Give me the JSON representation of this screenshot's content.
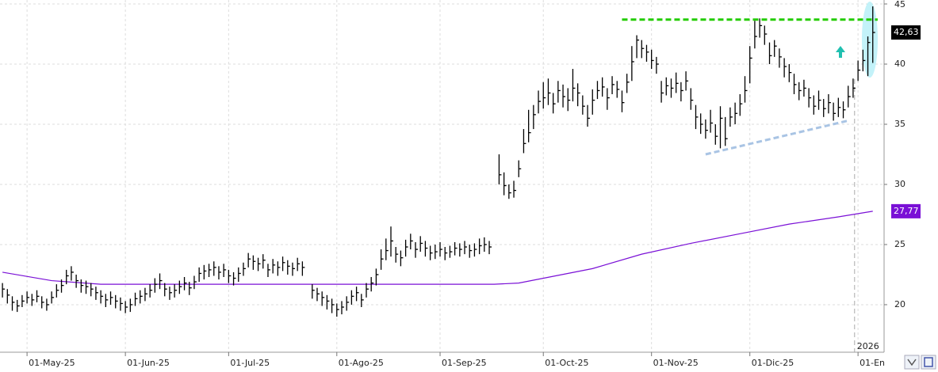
{
  "chart_data": {
    "type": "ohlc",
    "color": "#000000",
    "xlim": [
      -0.5,
      179.3
    ],
    "ylim": [
      16.05,
      45.33
    ],
    "yticks": [
      20,
      25,
      30,
      35,
      40,
      45
    ],
    "xticks": [
      {
        "value": 5,
        "label": "01-May-25"
      },
      {
        "value": 25,
        "label": "01-Jun-25"
      },
      {
        "value": 46,
        "label": "01-Jul-25"
      },
      {
        "value": 68,
        "label": "01-Ago-25"
      },
      {
        "value": 89,
        "label": "01-Sep-25"
      },
      {
        "value": 110,
        "label": "01-Oct-25"
      },
      {
        "value": 132,
        "label": "01-Nov-25"
      },
      {
        "value": 152,
        "label": "01-Dic-25"
      },
      {
        "value": 174,
        "label": "01-En"
      }
    ],
    "grid": true,
    "high": [
      21.8,
      21.3,
      20.7,
      20.4,
      20.8,
      21.1,
      20.9,
      21.2,
      20.7,
      20.5,
      21.1,
      21.7,
      22.1,
      22.9,
      23.2,
      22.5,
      22.1,
      22.0,
      21.8,
      21.5,
      21.2,
      20.9,
      21.1,
      20.8,
      20.6,
      20.3,
      20.5,
      21.0,
      21.2,
      21.4,
      21.7,
      22.2,
      22.6,
      21.8,
      21.5,
      21.7,
      22.0,
      22.3,
      21.9,
      22.4,
      23.1,
      23.3,
      23.4,
      23.6,
      23.2,
      23.4,
      22.9,
      22.7,
      23.1,
      23.5,
      24.3,
      24.1,
      23.9,
      24.2,
      23.4,
      23.8,
      23.6,
      24.0,
      23.7,
      23.5,
      23.9,
      23.6,
      null,
      21.7,
      21.4,
      21.1,
      20.8,
      20.5,
      20.1,
      20.3,
      20.7,
      21.2,
      21.5,
      20.9,
      21.8,
      22.3,
      23.0,
      24.6,
      25.5,
      26.5,
      24.8,
      24.5,
      25.4,
      25.9,
      25.2,
      25.7,
      25.3,
      24.9,
      25.0,
      25.2,
      24.8,
      24.9,
      25.2,
      25.1,
      25.3,
      25.0,
      25.1,
      25.5,
      25.6,
      25.3,
      null,
      32.5,
      31.0,
      30.0,
      30.3,
      32.0,
      34.6,
      36.2,
      36.6,
      37.8,
      38.5,
      38.8,
      37.6,
      38.6,
      38.3,
      38.0,
      39.6,
      38.4,
      37.4,
      36.6,
      37.9,
      38.6,
      38.9,
      38.0,
      39.0,
      38.6,
      37.8,
      39.2,
      41.5,
      42.4,
      42.0,
      41.6,
      41.2,
      40.6,
      38.6,
      38.9,
      38.8,
      39.3,
      38.5,
      39.4,
      38.0,
      36.6,
      35.9,
      35.4,
      36.2,
      35.0,
      36.5,
      35.6,
      36.4,
      36.8,
      37.5,
      39.0,
      41.5,
      43.6,
      43.8,
      43.2,
      41.8,
      42.0,
      41.3,
      40.5,
      40.0,
      39.2,
      38.5,
      38.7,
      38.0,
      37.4,
      37.8,
      37.1,
      37.5,
      36.8,
      37.2,
      36.9,
      38.2,
      38.8,
      40.3,
      41.2,
      42.3,
      44.8
    ],
    "low": [
      20.6,
      20.1,
      19.5,
      19.4,
      19.8,
      20.1,
      19.9,
      20.2,
      19.7,
      19.5,
      20.1,
      20.6,
      21.0,
      21.7,
      22.0,
      21.4,
      21.0,
      20.9,
      20.7,
      20.4,
      20.1,
      19.8,
      20.0,
      19.7,
      19.5,
      19.3,
      19.4,
      19.9,
      20.1,
      20.3,
      20.6,
      21.0,
      21.3,
      20.7,
      20.4,
      20.6,
      20.9,
      21.2,
      20.8,
      21.3,
      21.9,
      22.1,
      22.3,
      22.4,
      22.1,
      22.3,
      21.8,
      21.6,
      21.9,
      22.4,
      23.1,
      22.9,
      22.8,
      23.0,
      22.3,
      22.6,
      22.4,
      22.8,
      22.5,
      22.4,
      22.8,
      22.4,
      null,
      20.5,
      20.3,
      19.9,
      19.6,
      19.3,
      19.0,
      19.2,
      19.5,
      20.0,
      20.3,
      19.8,
      20.6,
      21.1,
      21.6,
      22.9,
      23.7,
      24.0,
      23.5,
      23.2,
      24.0,
      24.6,
      23.9,
      24.4,
      24.0,
      23.7,
      23.8,
      24.0,
      23.7,
      23.9,
      24.1,
      24.0,
      24.2,
      23.9,
      24.0,
      24.2,
      24.4,
      24.2,
      null,
      30.0,
      29.1,
      28.8,
      28.9,
      30.6,
      32.6,
      33.5,
      34.6,
      35.9,
      36.3,
      36.6,
      35.9,
      36.8,
      36.4,
      36.1,
      36.9,
      36.5,
      35.8,
      34.8,
      35.8,
      37.1,
      37.3,
      36.2,
      37.5,
      37.2,
      36.0,
      37.6,
      38.6,
      40.5,
      40.5,
      40.2,
      39.6,
      39.2,
      36.8,
      37.4,
      37.2,
      37.6,
      36.9,
      37.8,
      36.2,
      34.6,
      34.2,
      33.8,
      34.3,
      33.3,
      33.0,
      33.2,
      34.8,
      35.0,
      35.7,
      36.8,
      38.4,
      41.3,
      42.2,
      41.6,
      40.0,
      40.6,
      39.7,
      38.9,
      38.5,
      37.5,
      37.0,
      37.3,
      36.4,
      35.8,
      36.2,
      35.6,
      35.9,
      35.3,
      35.6,
      35.5,
      36.4,
      37.2,
      38.6,
      39.4,
      39.0,
      40.1
    ],
    "close": [
      21.3,
      20.8,
      20.2,
      19.9,
      20.3,
      20.6,
      20.4,
      20.7,
      20.2,
      20.0,
      20.6,
      21.2,
      21.6,
      22.4,
      22.7,
      22.0,
      21.6,
      21.5,
      21.3,
      21.0,
      20.7,
      20.4,
      20.6,
      20.3,
      20.1,
      19.8,
      20.0,
      20.5,
      20.7,
      20.9,
      21.2,
      21.7,
      22.0,
      21.3,
      21.0,
      21.2,
      21.5,
      21.8,
      21.4,
      21.9,
      22.6,
      22.8,
      22.9,
      23.1,
      22.7,
      22.9,
      22.4,
      22.2,
      22.6,
      23.0,
      23.8,
      23.6,
      23.4,
      23.7,
      22.9,
      23.3,
      23.1,
      23.5,
      23.2,
      23.0,
      23.4,
      23.1,
      null,
      21.2,
      20.9,
      20.6,
      20.3,
      20.0,
      19.6,
      19.8,
      20.2,
      20.7,
      21.0,
      20.4,
      21.3,
      21.8,
      22.5,
      23.8,
      24.5,
      25.3,
      24.2,
      23.9,
      24.8,
      25.3,
      24.6,
      25.1,
      24.7,
      24.3,
      24.4,
      24.6,
      24.3,
      24.4,
      24.7,
      24.6,
      24.8,
      24.5,
      24.6,
      24.9,
      25.0,
      24.8,
      null,
      30.8,
      29.9,
      29.3,
      29.5,
      31.3,
      33.4,
      34.3,
      35.8,
      36.9,
      37.2,
      37.6,
      36.7,
      37.8,
      37.3,
      37.0,
      38.0,
      37.6,
      36.5,
      35.5,
      37.0,
      37.8,
      38.1,
      37.2,
      38.3,
      37.9,
      36.8,
      38.5,
      40.2,
      42.0,
      41.3,
      41.0,
      40.3,
      40.0,
      37.6,
      38.2,
      38.0,
      38.4,
      37.8,
      38.6,
      37.0,
      35.6,
      35.0,
      34.5,
      35.1,
      34.0,
      35.5,
      33.8,
      35.6,
      35.9,
      36.7,
      37.8,
      40.5,
      42.3,
      43.2,
      42.5,
      40.7,
      41.5,
      40.6,
      39.8,
      39.3,
      38.3,
      37.8,
      38.0,
      37.2,
      36.5,
      37.0,
      36.3,
      36.8,
      35.9,
      36.4,
      36.2,
      37.3,
      38.0,
      39.5,
      40.3,
      41.8,
      42.63
    ],
    "last_price": {
      "value": 42.63,
      "label": "42,63"
    },
    "moving_average": {
      "color": "#7a10d6",
      "x": [
        0,
        10,
        20,
        60,
        100,
        105,
        120,
        130,
        140,
        150,
        160,
        170,
        177
      ],
      "values": [
        22.7,
        22.0,
        21.7,
        21.7,
        21.7,
        21.8,
        23.0,
        24.2,
        25.1,
        25.9,
        26.7,
        27.3,
        27.77
      ],
      "last_label": {
        "value": 27.77,
        "label": "27,77"
      }
    },
    "lines": [
      {
        "color": "#22cc00",
        "x": [
          126,
          178
        ],
        "values": [
          43.7,
          43.7
        ]
      },
      {
        "color": "#a9c4e4",
        "x": [
          143,
          172
        ],
        "values": [
          32.5,
          35.3
        ]
      }
    ],
    "year_marker": {
      "value": 173.3,
      "label": "2026"
    }
  }
}
